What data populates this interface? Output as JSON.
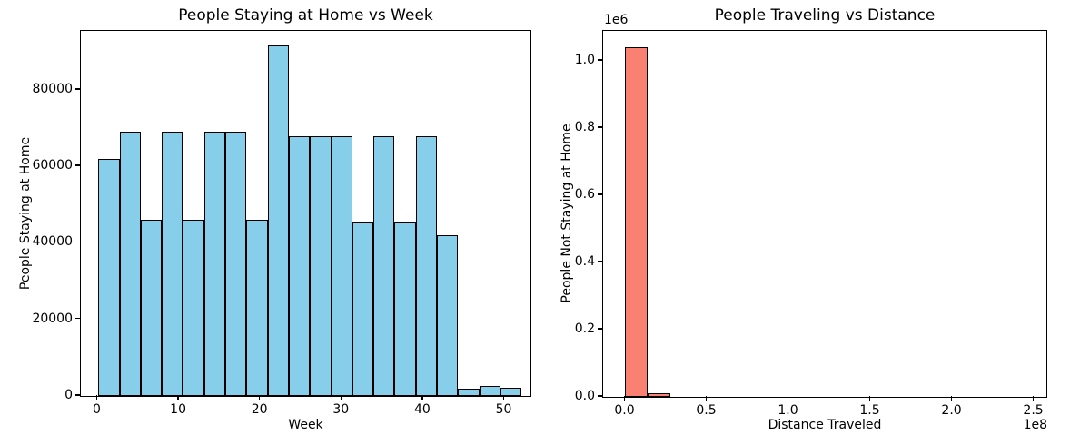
{
  "figure": {
    "background": "#ffffff",
    "text_color": "#000000"
  },
  "chart_data": [
    {
      "type": "bar",
      "title": "People Staying at Home vs Week",
      "xlabel": "Week",
      "ylabel": "People Staying at Home",
      "bar_color": "#87CEEB",
      "edge_color": "#000000",
      "grid": false,
      "legend": null,
      "bin_start": 0.2,
      "bin_width": 2.6,
      "values": [
        62000,
        69000,
        46000,
        69000,
        46000,
        69000,
        69000,
        46000,
        91700,
        68000,
        68000,
        68000,
        45500,
        68000,
        45500,
        68000,
        42000,
        1900,
        2700,
        2200
      ],
      "xlim": [
        -2.12,
        53.35
      ],
      "ylim": [
        0,
        95900
      ],
      "xticks": {
        "values": [
          0,
          10,
          20,
          30,
          40,
          50
        ],
        "labels": [
          "0",
          "10",
          "20",
          "30",
          "40",
          "50"
        ]
      },
      "yticks": {
        "values": [
          0,
          20000,
          40000,
          60000,
          80000
        ],
        "labels": [
          "0",
          "20000",
          "40000",
          "60000",
          "80000"
        ]
      }
    },
    {
      "type": "bar",
      "title": "People Traveling vs Distance",
      "xlabel": "Distance Traveled",
      "ylabel": "People Not Staying at Home",
      "y_offset_text": "1e6",
      "x_offset_text": "1e8",
      "bar_color": "#FA8072",
      "edge_color": "#000000",
      "grid": false,
      "legend": null,
      "bin_start": 0,
      "bin_width": 13900000,
      "values": [
        1040000,
        10000,
        0,
        0,
        0,
        0,
        0,
        0,
        0,
        0,
        0,
        0,
        0,
        0,
        0,
        0,
        0,
        0,
        0
      ],
      "xlim": [
        -13900000,
        258300000
      ],
      "ylim": [
        0,
        1094600
      ],
      "xticks": {
        "values": [
          0,
          50000000,
          100000000,
          150000000,
          200000000,
          250000000
        ],
        "labels": [
          "0.0",
          "0.5",
          "1.0",
          "1.5",
          "2.0",
          "2.5"
        ]
      },
      "yticks": {
        "values": [
          0,
          200000,
          400000,
          600000,
          800000,
          1000000
        ],
        "labels": [
          "0.0",
          "0.2",
          "0.4",
          "0.6",
          "0.8",
          "1.0"
        ]
      }
    }
  ]
}
